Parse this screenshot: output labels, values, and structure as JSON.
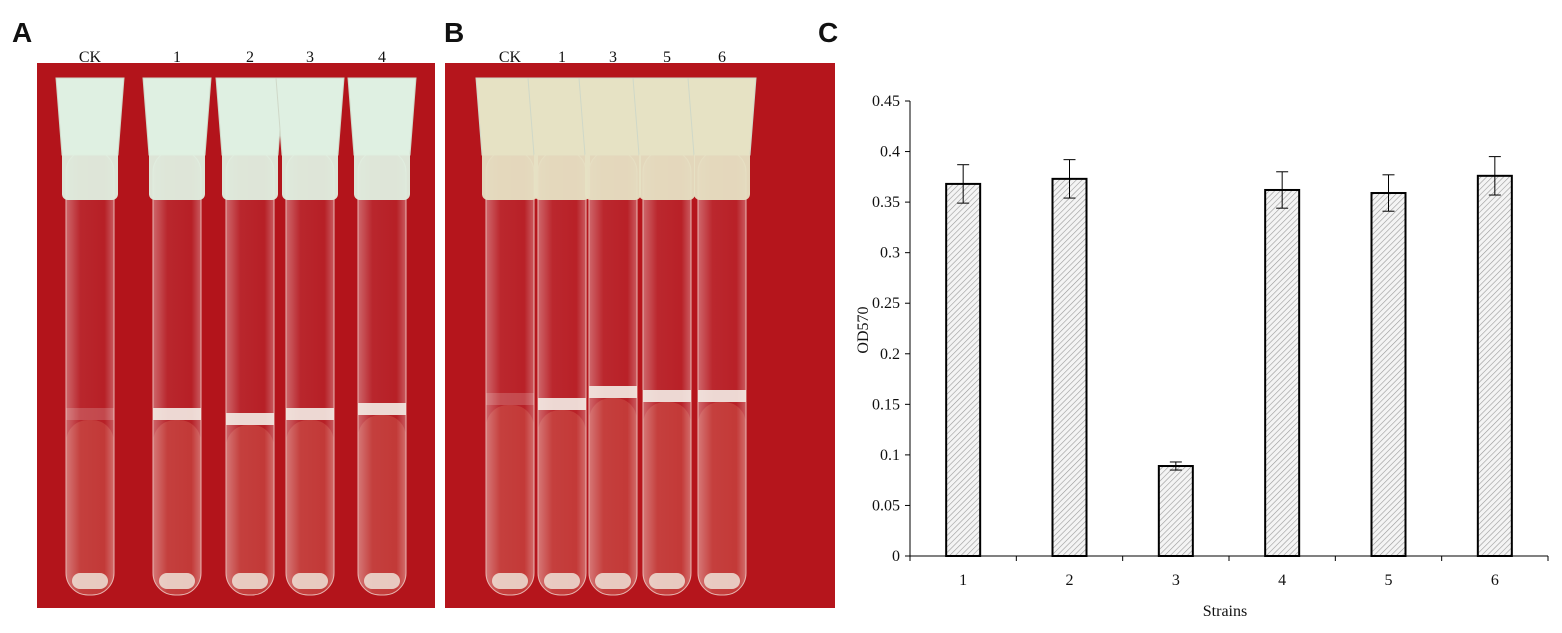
{
  "panels": {
    "A": {
      "label": "A",
      "tube_labels": [
        "CK",
        "1",
        "2",
        "3",
        "4"
      ]
    },
    "B": {
      "label": "B",
      "tube_labels": [
        "CK",
        "1",
        "3",
        "5",
        "6"
      ]
    }
  },
  "chart_data": {
    "type": "bar",
    "panel_label": "C",
    "categories": [
      "1",
      "2",
      "3",
      "4",
      "5",
      "6"
    ],
    "values": [
      0.368,
      0.373,
      0.089,
      0.362,
      0.359,
      0.376
    ],
    "errors": [
      0.019,
      0.019,
      0.004,
      0.018,
      0.018,
      0.019
    ],
    "ylabel": "OD570",
    "xlabel": "Strains",
    "ylim": [
      0,
      0.45
    ],
    "yticks": [
      0,
      0.05,
      0.1,
      0.15,
      0.2,
      0.25,
      0.3,
      0.35,
      0.4,
      0.45
    ]
  }
}
